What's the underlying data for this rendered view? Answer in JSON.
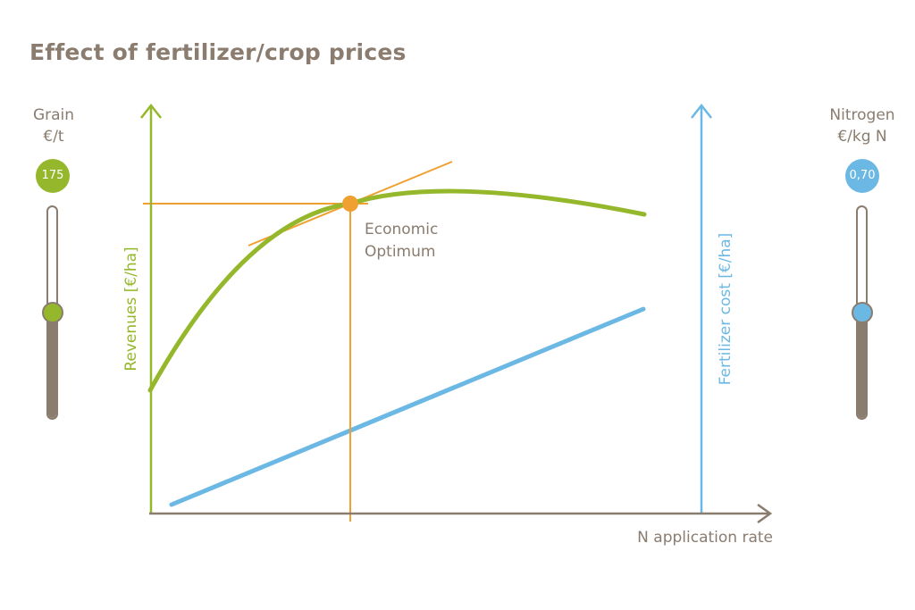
{
  "title": "Effect of fertilizer/crop prices",
  "grain": {
    "label_line1": "Grain",
    "label_line2": "€/t",
    "value": "175",
    "slider_level": 0.5,
    "color": "#95b72b"
  },
  "nitrogen": {
    "label_line1": "Nitrogen",
    "label_line2": "€/kg N",
    "value": "0,70",
    "slider_level": 0.5,
    "color": "#6cb8e4"
  },
  "chart": {
    "revenue_axis_label": "Revenues [€/ha]",
    "cost_axis_label": "Fertilizer cost [€/ha]",
    "x_axis_label": "N application rate",
    "optimum_label_line1": "Economic",
    "optimum_label_line2": "Optimum",
    "colors": {
      "axis": "#8a7c6e",
      "revenue": "#95b72b",
      "cost": "#6cb8e4",
      "optimum": "#f0a030"
    }
  }
}
